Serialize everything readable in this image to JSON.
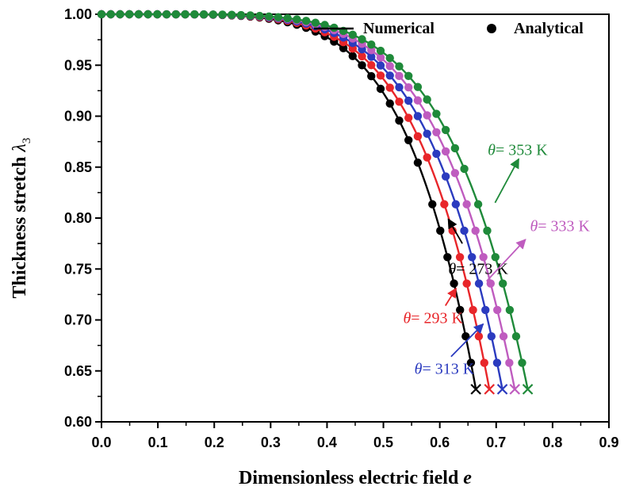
{
  "chart_data": {
    "type": "line",
    "title": "",
    "xlabel": "Dimensionless electric field",
    "xlabel_var": "e",
    "ylabel": "Thickness stretch",
    "ylabel_var": "λ",
    "ylabel_sub": "3",
    "xlim": [
      0.0,
      0.9
    ],
    "ylim": [
      0.6,
      1.0
    ],
    "xticks": [
      "0.0",
      "0.1",
      "0.2",
      "0.3",
      "0.4",
      "0.5",
      "0.6",
      "0.7",
      "0.8",
      "0.9"
    ],
    "yticks": [
      "0.60",
      "0.65",
      "0.70",
      "0.75",
      "0.80",
      "0.85",
      "0.90",
      "0.95",
      "1.00"
    ],
    "legend": {
      "placement": "top-right",
      "items": [
        {
          "label": "Numerical",
          "marker": "line"
        },
        {
          "label": "Analytical",
          "marker": "dot"
        }
      ]
    },
    "series": [
      {
        "name": "θ = 273 K",
        "theta_symbol": "θ",
        "theta_value": "= 273 K",
        "temperature_K": 273,
        "color": "#000000",
        "e_max": 0.664,
        "lambda_end": 0.632
      },
      {
        "name": "θ = 293 K",
        "theta_symbol": "θ",
        "theta_value": "= 293 K",
        "temperature_K": 293,
        "color": "#e8262a",
        "e_max": 0.688,
        "lambda_end": 0.632
      },
      {
        "name": "θ = 313 K",
        "theta_symbol": "θ",
        "theta_value": "= 313 K",
        "temperature_K": 313,
        "color": "#2b3bbf",
        "e_max": 0.711,
        "lambda_end": 0.632
      },
      {
        "name": "θ = 333 K",
        "theta_symbol": "θ",
        "theta_value": "= 333 K",
        "temperature_K": 333,
        "color": "#bf5cbf",
        "e_max": 0.733,
        "lambda_end": 0.632
      },
      {
        "name": "θ = 353 K",
        "theta_symbol": "θ",
        "theta_value": "= 353 K",
        "temperature_K": 353,
        "color": "#1f8a3a",
        "e_max": 0.756,
        "lambda_end": 0.632
      }
    ],
    "annotations": [
      {
        "series": 0,
        "text_x": 0.615,
        "text_y": 0.745,
        "arrow_from": [
          0.64,
          0.775
        ],
        "arrow_to": [
          0.615,
          0.799
        ]
      },
      {
        "series": 1,
        "text_x": 0.535,
        "text_y": 0.697,
        "arrow_from": [
          0.61,
          0.714
        ],
        "arrow_to": [
          0.629,
          0.731
        ]
      },
      {
        "series": 2,
        "text_x": 0.555,
        "text_y": 0.647,
        "arrow_from": [
          0.62,
          0.664
        ],
        "arrow_to": [
          0.677,
          0.696
        ]
      },
      {
        "series": 3,
        "text_x": 0.76,
        "text_y": 0.787,
        "arrow_from": [
          0.683,
          0.738
        ],
        "arrow_to": [
          0.752,
          0.779
        ]
      },
      {
        "series": 4,
        "text_x": 0.685,
        "text_y": 0.862,
        "arrow_from": [
          0.698,
          0.815
        ],
        "arrow_to": [
          0.74,
          0.858
        ]
      }
    ]
  }
}
